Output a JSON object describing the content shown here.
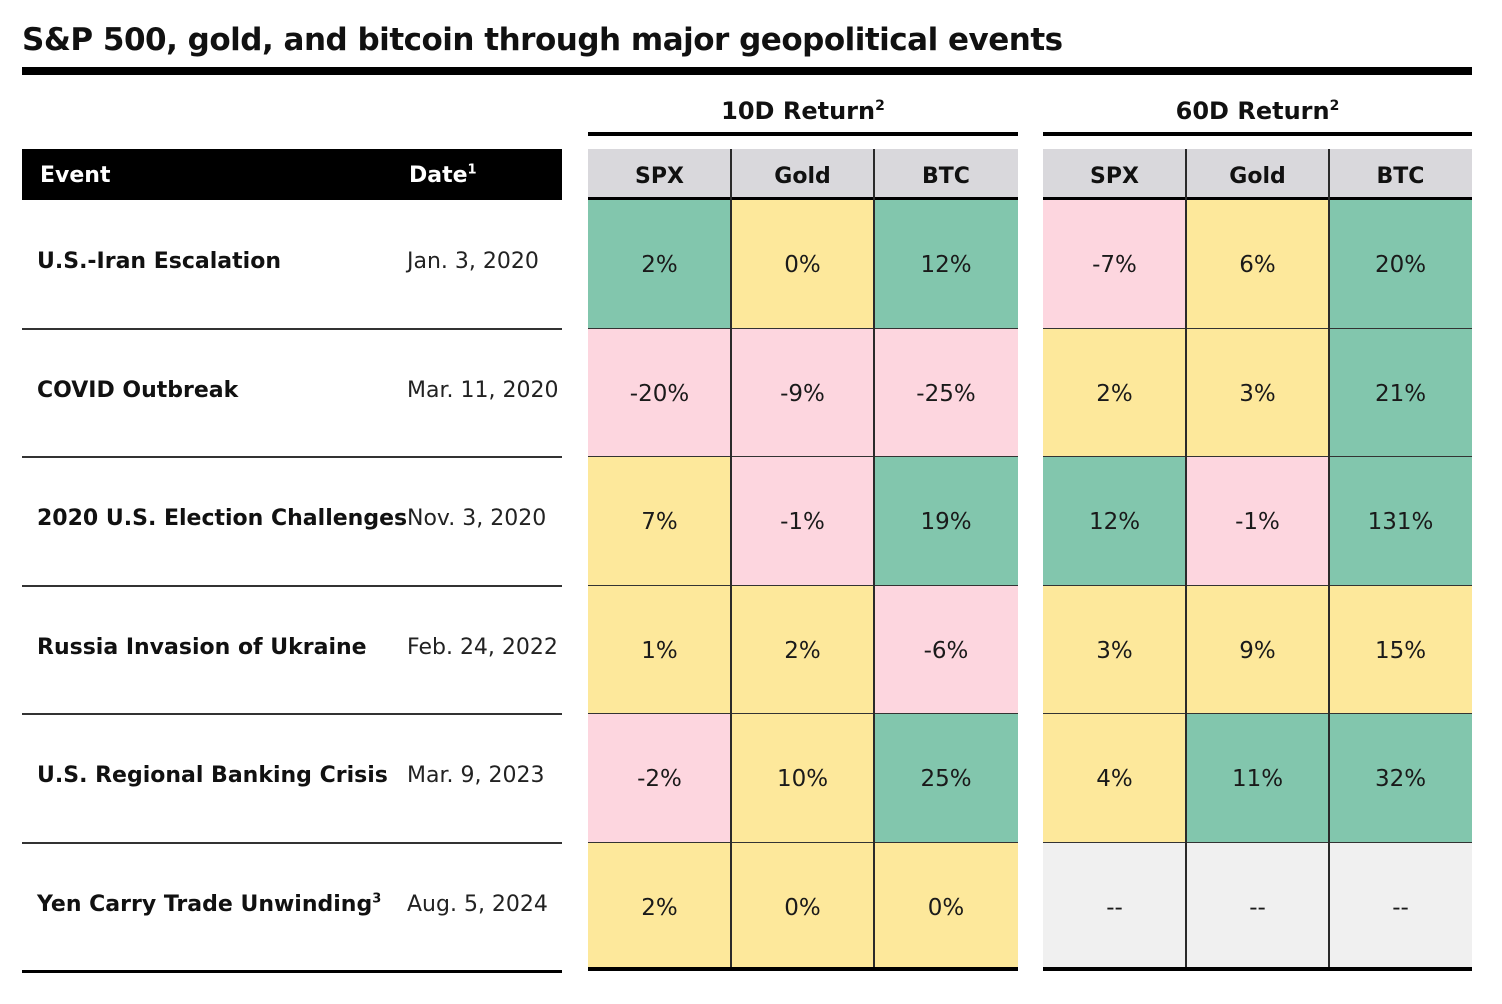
{
  "title": "S&P 500, gold, and bitcoin through major geopolitical events",
  "colors": {
    "positive_strong": "#82c6ad",
    "neutral_yellow": "#fde89b",
    "negative_pink": "#fdd6df",
    "not_available": "#f0f0f0",
    "header_gray": "#d9d8dc"
  },
  "groups": [
    {
      "label": "10D Return",
      "footnote": "2"
    },
    {
      "label": "60D Return",
      "footnote": "2"
    }
  ],
  "columns": {
    "event": "Event",
    "date": "Date",
    "date_footnote": "1"
  },
  "chart_data": {
    "type": "table",
    "title": "S&P 500, gold, and bitcoin through major geopolitical events",
    "assets": [
      "SPX",
      "Gold",
      "BTC"
    ],
    "groups": [
      "10D Return",
      "60D Return"
    ],
    "rows": [
      {
        "event": "U.S.-Iran Escalation",
        "footnote": "",
        "date": "Jan. 3, 2020",
        "d10": [
          "2%",
          "0%",
          "12%"
        ],
        "d60": [
          "-7%",
          "6%",
          "20%"
        ],
        "d10_color": [
          "green",
          "yellow",
          "green"
        ],
        "d60_color": [
          "pink",
          "yellow",
          "green"
        ]
      },
      {
        "event": "COVID Outbreak",
        "footnote": "",
        "date": "Mar. 11, 2020",
        "d10": [
          "-20%",
          "-9%",
          "-25%"
        ],
        "d60": [
          "2%",
          "3%",
          "21%"
        ],
        "d10_color": [
          "pink",
          "pink",
          "pink"
        ],
        "d60_color": [
          "yellow",
          "yellow",
          "green"
        ]
      },
      {
        "event": "2020 U.S. Election Challenges",
        "footnote": "",
        "date": "Nov. 3, 2020",
        "d10": [
          "7%",
          "-1%",
          "19%"
        ],
        "d60": [
          "12%",
          "-1%",
          "131%"
        ],
        "d10_color": [
          "yellow",
          "pink",
          "green"
        ],
        "d60_color": [
          "green",
          "pink",
          "green"
        ]
      },
      {
        "event": "Russia Invasion of Ukraine",
        "footnote": "",
        "date": "Feb. 24, 2022",
        "d10": [
          "1%",
          "2%",
          "-6%"
        ],
        "d60": [
          "3%",
          "9%",
          "15%"
        ],
        "d10_color": [
          "yellow",
          "yellow",
          "pink"
        ],
        "d60_color": [
          "yellow",
          "yellow",
          "yellow"
        ]
      },
      {
        "event": "U.S. Regional Banking Crisis",
        "footnote": "",
        "date": "Mar. 9, 2023",
        "d10": [
          "-2%",
          "10%",
          "25%"
        ],
        "d60": [
          "4%",
          "11%",
          "32%"
        ],
        "d10_color": [
          "pink",
          "yellow",
          "green"
        ],
        "d60_color": [
          "yellow",
          "green",
          "green"
        ]
      },
      {
        "event": "Yen Carry Trade Unwinding",
        "footnote": "3",
        "date": "Aug. 5, 2024",
        "d10": [
          "2%",
          "0%",
          "0%"
        ],
        "d60": [
          "--",
          "--",
          "--"
        ],
        "d10_color": [
          "yellow",
          "yellow",
          "yellow"
        ],
        "d60_color": [
          "na",
          "na",
          "na"
        ]
      }
    ]
  }
}
